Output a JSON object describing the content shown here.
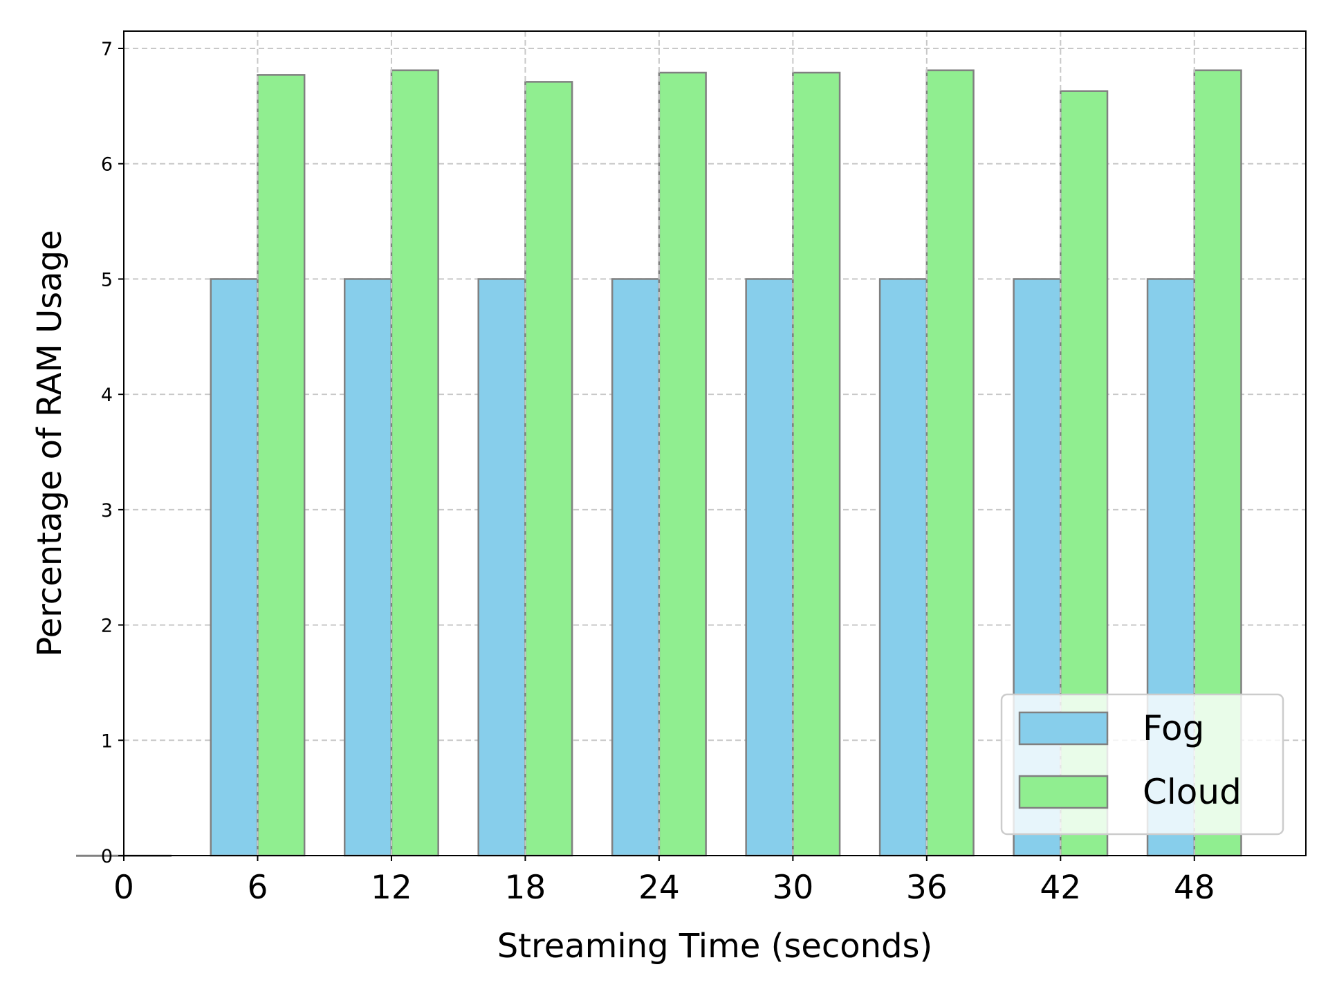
{
  "chart_data": {
    "type": "bar",
    "title": "",
    "xlabel": "Streaming Time (seconds)",
    "ylabel": "Percentage of RAM Usage",
    "x_ticks": [
      "0",
      "6",
      "12",
      "18",
      "24",
      "30",
      "36",
      "42",
      "48"
    ],
    "y_ticks": [
      "0",
      "1",
      "2",
      "3",
      "4",
      "5",
      "6",
      "7"
    ],
    "xlim": [
      0,
      53
    ],
    "ylim": [
      0,
      7.15
    ],
    "grid": true,
    "legend_position": "lower right",
    "series": [
      {
        "name": "Fog",
        "color": "#87CEEB",
        "x": [
          0,
          6,
          12,
          18,
          24,
          30,
          36,
          42,
          48
        ],
        "values": [
          0,
          5.0,
          5.0,
          5.0,
          5.0,
          5.0,
          5.0,
          5.0,
          5.0
        ]
      },
      {
        "name": "Cloud",
        "color": "#90EE90",
        "x": [
          0,
          6,
          12,
          18,
          24,
          30,
          36,
          42,
          48
        ],
        "values": [
          0,
          6.77,
          6.81,
          6.71,
          6.79,
          6.79,
          6.81,
          6.63,
          6.81
        ]
      }
    ],
    "bar_edge_color": "#808080"
  }
}
